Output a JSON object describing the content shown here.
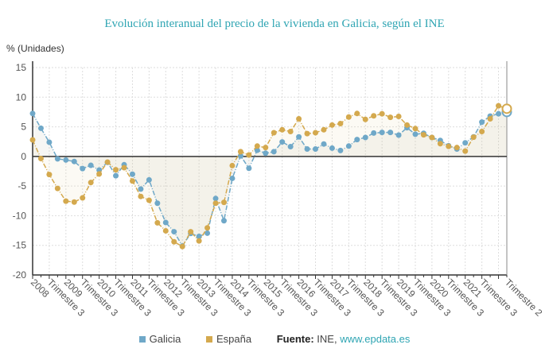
{
  "chart_data": {
    "type": "line",
    "title": "Evolución interanual del precio de la vivienda en Galicia, según el INE",
    "ylabel": "% (Unidades)",
    "xlabel": "",
    "ylim": [
      -20,
      15
    ],
    "yticks": [
      15,
      10,
      5,
      0,
      -5,
      -10,
      -15,
      -20
    ],
    "grid": true,
    "legend": "bottom",
    "categories": [
      "2008",
      "",
      "Trimestre 3",
      "",
      "2009",
      "",
      "Trimestre 3",
      "",
      "2010",
      "",
      "Trimestre 3",
      "",
      "2011",
      "",
      "Trimestre 3",
      "",
      "2012",
      "",
      "Trimestre 3",
      "",
      "2013",
      "",
      "Trimestre 3",
      "",
      "2014",
      "",
      "Trimestre 3",
      "",
      "2015",
      "",
      "Trimestre 3",
      "",
      "2016",
      "",
      "Trimestre 3",
      "",
      "2017",
      "",
      "Trimestre 3",
      "",
      "2018",
      "",
      "Trimestre 3",
      "",
      "2019",
      "",
      "Trimestre 3",
      "",
      "2020",
      "",
      "Trimestre 3",
      "",
      "2021",
      "",
      "Trimestre 3",
      "",
      "",
      "Trimestre 2"
    ],
    "series": [
      {
        "name": "Galicia",
        "color": "#6fa8c8",
        "values": [
          7.25,
          4.75,
          2.4,
          -0.4,
          -0.6,
          -0.85,
          -2.05,
          -1.5,
          -2.3,
          -1.0,
          -3.25,
          -1.4,
          -3.0,
          -5.5,
          -3.95,
          -7.9,
          -11.15,
          -12.7,
          -15.1,
          -13.0,
          -13.5,
          -12.95,
          -7.1,
          -10.85,
          -3.7,
          0.1,
          -2.0,
          1.05,
          0.55,
          0.8,
          2.45,
          1.65,
          3.3,
          1.25,
          1.25,
          2.1,
          1.4,
          1.0,
          1.75,
          2.85,
          3.2,
          3.95,
          4.05,
          4.05,
          3.6,
          4.85,
          3.75,
          3.9,
          3.2,
          2.7,
          1.8,
          1.25,
          2.3,
          3.3,
          5.8,
          6.8,
          7.2,
          7.5
        ]
      },
      {
        "name": "España",
        "color": "#d4a94e",
        "values": [
          2.8,
          -0.35,
          -3.05,
          -5.4,
          -7.55,
          -7.7,
          -7.0,
          -4.4,
          -2.95,
          -0.95,
          -2.25,
          -1.9,
          -4.15,
          -6.75,
          -7.4,
          -11.2,
          -12.55,
          -14.4,
          -15.2,
          -12.7,
          -14.25,
          -12.05,
          -7.9,
          -7.75,
          -1.55,
          0.8,
          0.25,
          1.75,
          1.5,
          4.0,
          4.5,
          4.2,
          6.35,
          3.85,
          4.0,
          4.5,
          5.3,
          5.55,
          6.65,
          7.25,
          6.25,
          6.85,
          7.2,
          6.6,
          6.75,
          5.3,
          4.7,
          3.65,
          3.2,
          2.15,
          1.7,
          1.5,
          0.9,
          3.25,
          4.2,
          6.35,
          8.55,
          8.05
        ]
      }
    ]
  },
  "source": {
    "label": "Fuente:",
    "text": "INE,",
    "link": "www.epdata.es"
  }
}
